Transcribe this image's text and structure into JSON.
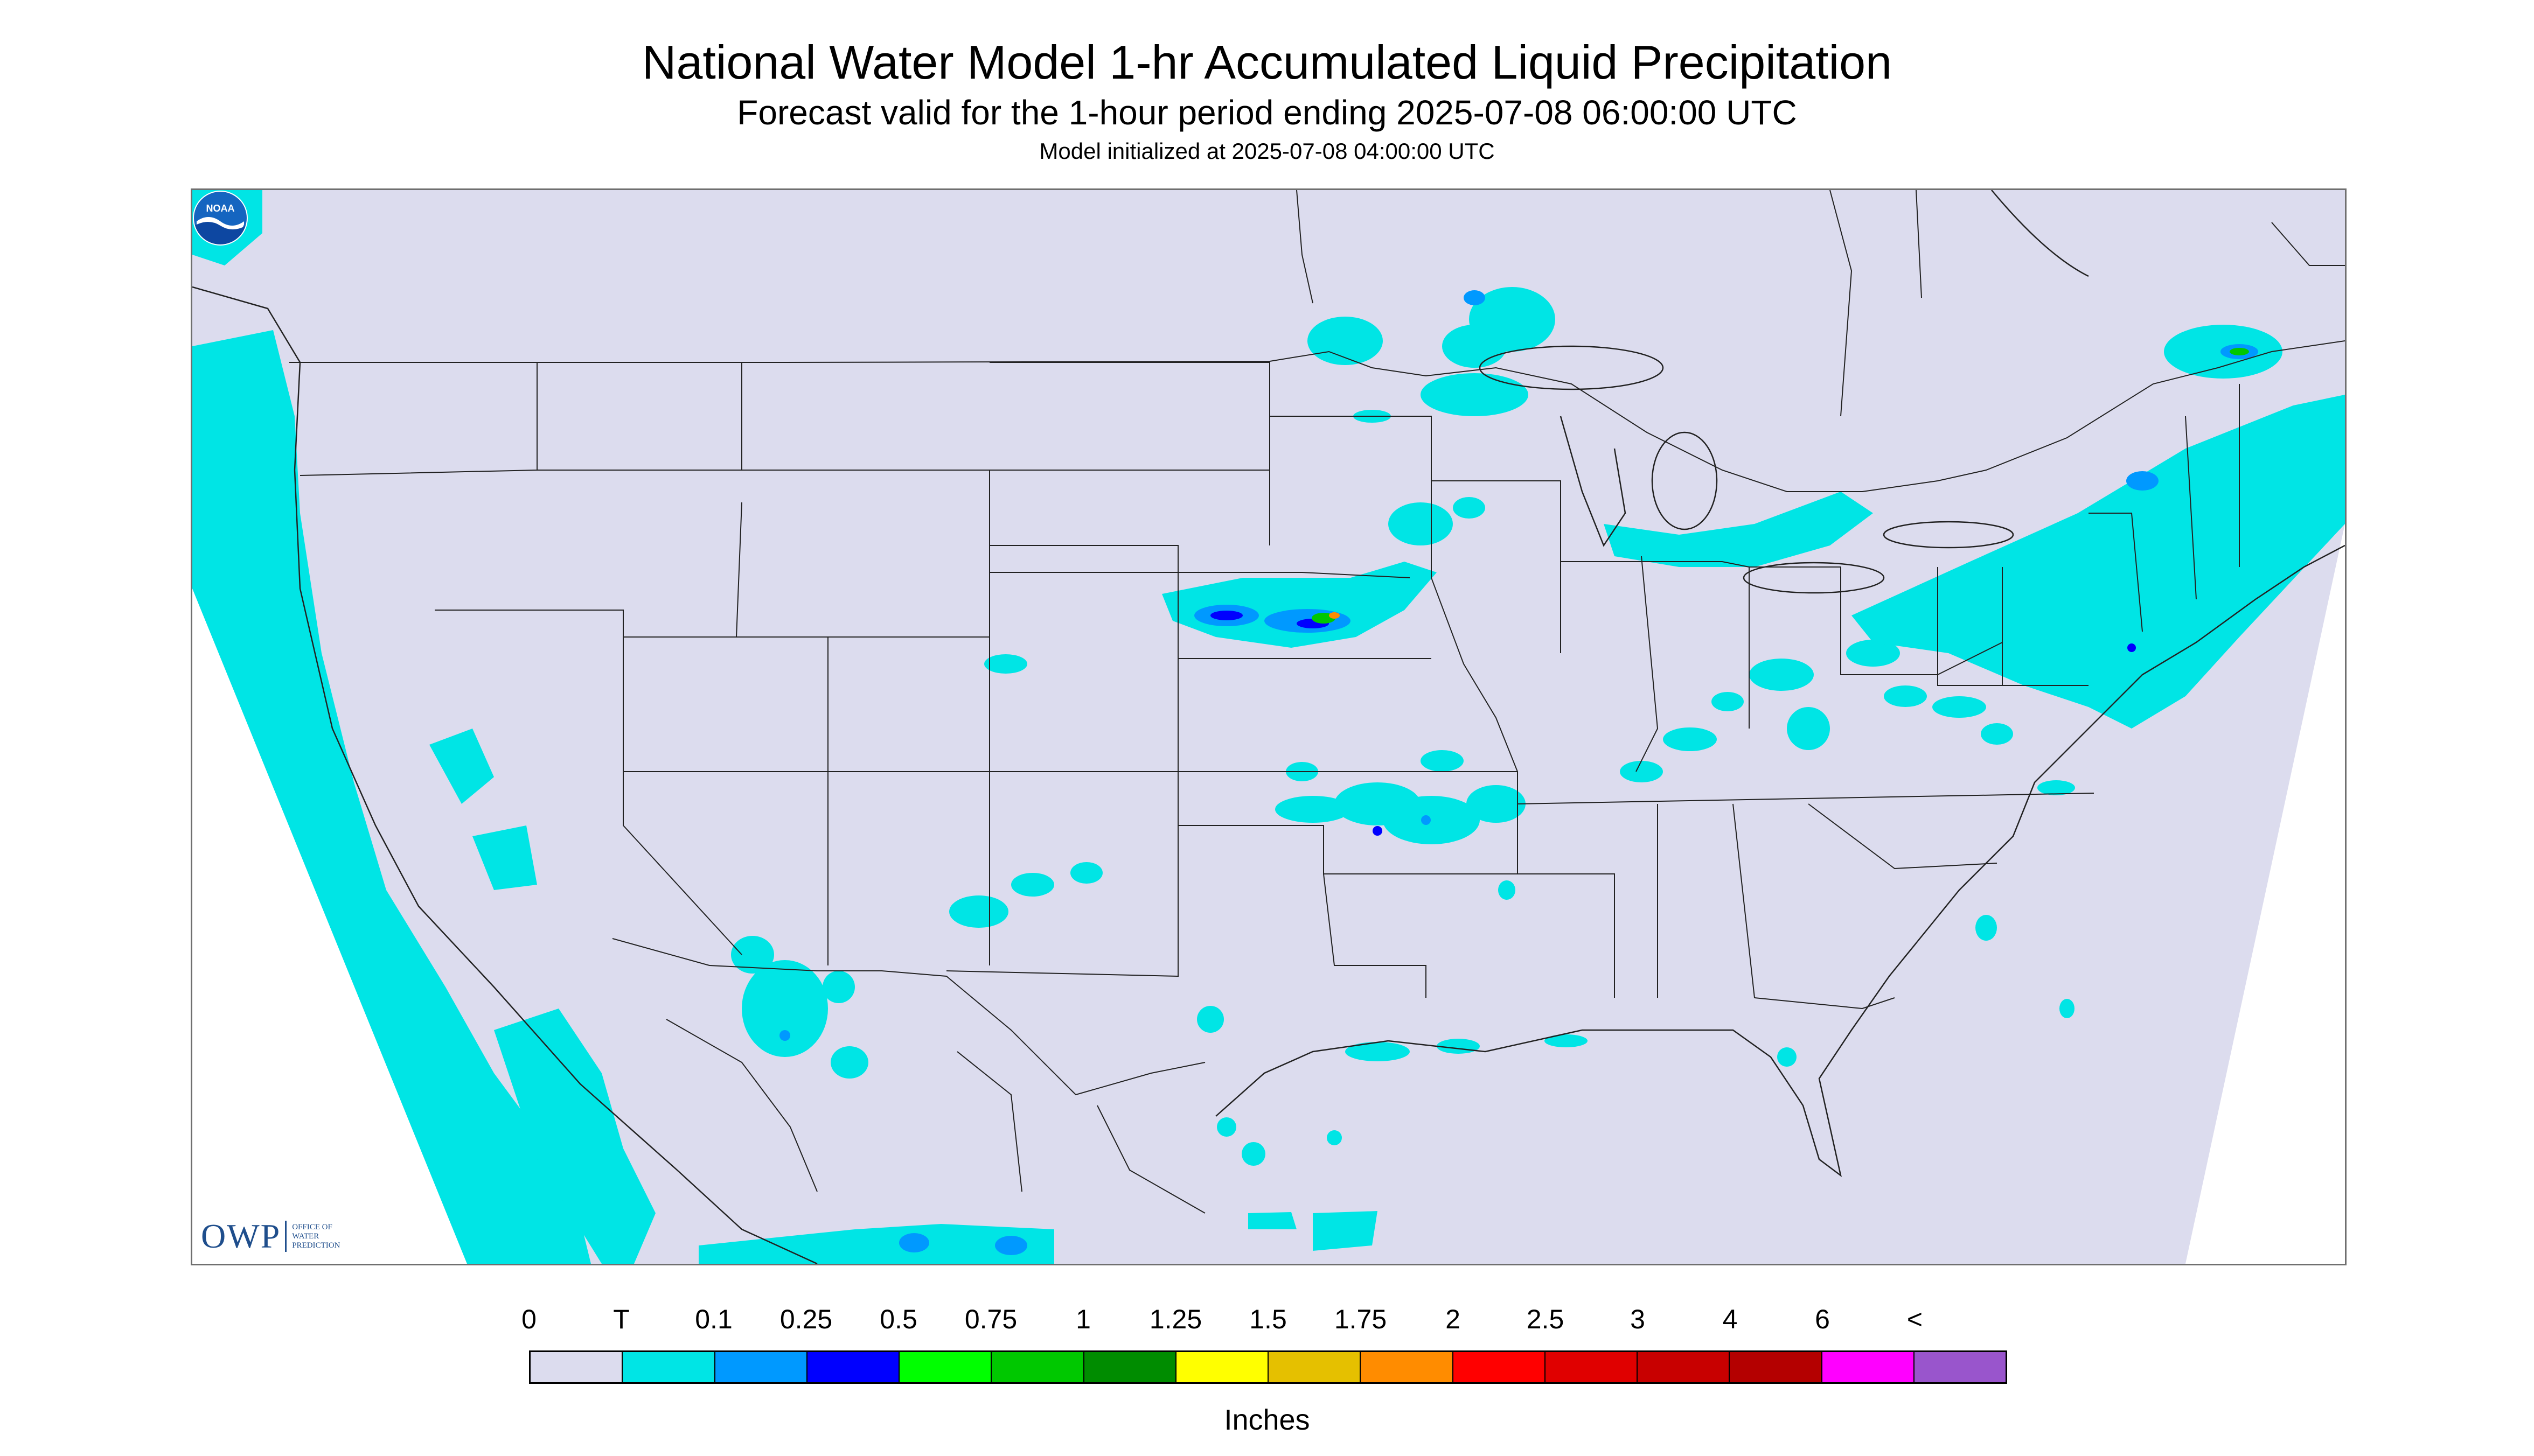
{
  "header": {
    "title": "National Water Model 1-hr Accumulated Liquid Precipitation",
    "subtitle": "Forecast valid for the 1-hour period ending 2025-07-08 06:00:00 UTC",
    "init_line": "Model initialized at 2025-07-08 04:00:00 UTC"
  },
  "logos": {
    "owp_main": "OWP",
    "owp_sub": "OFFICE OF\nWATER\nPREDICTION",
    "noaa_text": "NOAA"
  },
  "colors": {
    "domain_fill": "#dcdcee",
    "trace": "#00e5e5",
    "light_blue": "#0099ff",
    "blue": "#0000ff",
    "green": "#00ff00",
    "mid_green": "#00c800",
    "dark_green": "#008c00",
    "yellow": "#ffff00",
    "orange": "#ff8c00",
    "boundaries": "#222222"
  },
  "legend": {
    "labels": [
      "0",
      "T",
      "0.1",
      "0.25",
      "0.5",
      "0.75",
      "1",
      "1.25",
      "1.5",
      "1.75",
      "2",
      "2.5",
      "3",
      "4",
      "6",
      "<"
    ],
    "colors": [
      "#dcdcee",
      "#00e5e5",
      "#0099ff",
      "#0000ff",
      "#00ff00",
      "#00c800",
      "#008c00",
      "#ffff00",
      "#e5c000",
      "#ff8c00",
      "#ff0000",
      "#e00000",
      "#c80000",
      "#b40000",
      "#ff00ff",
      "#9955cc"
    ],
    "units": "Inches"
  }
}
